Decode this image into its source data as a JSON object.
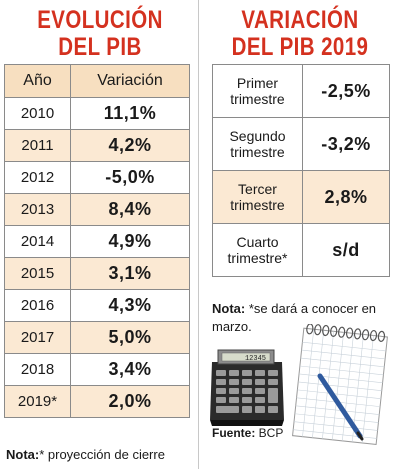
{
  "left": {
    "title_line1": "EVOLUCIÓN",
    "title_line2": "DEL PIB",
    "header_year": "Año",
    "header_value": "Variación",
    "rows": [
      {
        "year": "2010",
        "value": "11,1%"
      },
      {
        "year": "2011",
        "value": "4,2%"
      },
      {
        "year": "2012",
        "value": "-5,0%"
      },
      {
        "year": "2013",
        "value": "8,4%"
      },
      {
        "year": "2014",
        "value": "4,9%"
      },
      {
        "year": "2015",
        "value": "3,1%"
      },
      {
        "year": "2016",
        "value": "4,3%"
      },
      {
        "year": "2017",
        "value": "5,0%"
      },
      {
        "year": "2018",
        "value": "3,4%"
      },
      {
        "year": "2019*",
        "value": "2,0%"
      }
    ],
    "note_label": "Nota:",
    "note_text": "* proyección de cierre"
  },
  "right": {
    "title_line1": "VARIACIÓN",
    "title_line2": "DEL PIB 2019",
    "rows": [
      {
        "quarter_line1": "Primer",
        "quarter_line2": "trimestre",
        "value": "-2,5%"
      },
      {
        "quarter_line1": "Segundo",
        "quarter_line2": "trimestre",
        "value": "-3,2%"
      },
      {
        "quarter_line1": "Tercer",
        "quarter_line2": "trimestre",
        "value": "2,8%"
      },
      {
        "quarter_line1": "Cuarto",
        "quarter_line2": "trimestre*",
        "value": "s/d"
      }
    ],
    "note_label": "Nota:",
    "note_text": " *se dará a conocer en marzo.",
    "source_label": "Fuente:",
    "source_text": " BCP",
    "calculator_display": "12345"
  },
  "colors": {
    "title": "#d4311f",
    "row_alt": "#fbe9d3",
    "header": "#f7dfc0"
  },
  "icons": [
    "calculator-icon",
    "notebook-icon",
    "pen-icon"
  ]
}
